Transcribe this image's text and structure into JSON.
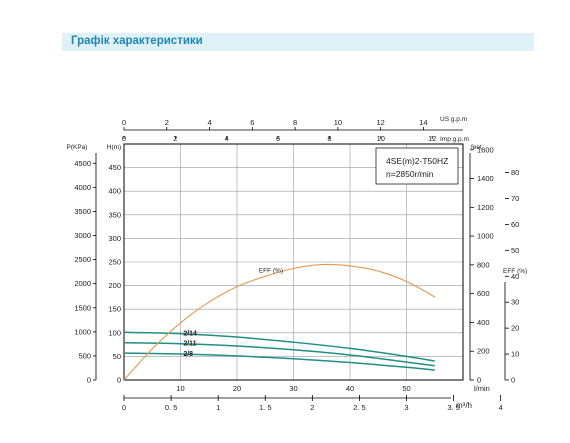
{
  "header": {
    "title": "Графік характеристики"
  },
  "chart_data": {
    "type": "line",
    "model_box": {
      "line1": "4SE(m)2-T50HZ",
      "line2": "n=2850r/min"
    },
    "axes": {
      "x_lpm": {
        "label": "l/min",
        "range": [
          0,
          60
        ],
        "ticks": [
          10,
          20,
          30,
          40,
          50
        ],
        "tick_labels": [
          "10",
          "20",
          "30",
          "40",
          "50"
        ]
      },
      "x_m3h": {
        "label": "m³/h",
        "range": [
          0,
          3.6
        ],
        "ticks": [
          0,
          0.5,
          1,
          1.5,
          2,
          2.5,
          3,
          3.5,
          4
        ],
        "tick_labels": [
          "0",
          "0. 5",
          "1",
          "1. 5",
          "2",
          "2. 5",
          "3",
          "3. 5",
          "4"
        ]
      },
      "x_usgpm": {
        "label": "US g.p.m",
        "range": [
          0,
          15.85
        ],
        "ticks": [
          0,
          2,
          4,
          6,
          8,
          10,
          12,
          14
        ],
        "tick_labels": [
          "0",
          "2",
          "4",
          "6",
          "8",
          "10",
          "12",
          "14"
        ]
      },
      "x_impgpm": {
        "label": "Imp g.p.m",
        "range": [
          0,
          13.2
        ],
        "ticks": [
          0,
          2,
          4,
          6,
          8,
          10,
          12,
          14
        ],
        "tick_labels": [
          "0",
          "2",
          "4",
          "6",
          "8",
          "10",
          "12",
          "14"
        ]
      },
      "y_head_m": {
        "label": "H(m)",
        "range": [
          0,
          500
        ],
        "ticks": [
          0,
          50,
          100,
          150,
          200,
          250,
          300,
          350,
          400,
          450
        ],
        "tick_labels": [
          "0",
          "50",
          "100",
          "150",
          "200",
          "250",
          "300",
          "350",
          "400",
          "450"
        ]
      },
      "y_pressure_kpa": {
        "label": "P(KPa)",
        "range": [
          0,
          4900
        ],
        "ticks": [
          0,
          500,
          1000,
          1500,
          2000,
          2500,
          3000,
          3500,
          4000,
          4500
        ],
        "tick_labels": [
          "0",
          "500",
          "1000",
          "1500",
          "2000",
          "2500",
          "3000",
          "3500",
          "4000",
          "4500"
        ]
      },
      "y_feet": {
        "label": "feet",
        "range": [
          0,
          1640
        ],
        "ticks": [
          0,
          200,
          400,
          600,
          800,
          1000,
          1200,
          1400,
          1600
        ],
        "tick_labels": [
          "0",
          "200",
          "400",
          "600",
          "800",
          "1000",
          "1200",
          "1400",
          "1600"
        ]
      },
      "y_eff": {
        "label": "EFF (%)",
        "range": [
          0,
          91
        ],
        "ticks": [
          0,
          10,
          20,
          30,
          40,
          50,
          60,
          70,
          80
        ],
        "tick_labels": [
          "0",
          "10",
          "20",
          "30",
          "40",
          "50",
          "60",
          "70",
          "80"
        ]
      }
    },
    "x_unit": "l/min",
    "series": [
      {
        "name": "2/14",
        "axis": "y_head_m",
        "color": "#1f8f87",
        "x": [
          0,
          10,
          20,
          30,
          40,
          50,
          55
        ],
        "y": [
          101,
          98,
          91,
          80,
          67,
          50,
          40
        ]
      },
      {
        "name": "2/11",
        "axis": "y_head_m",
        "color": "#1f8f87",
        "x": [
          0,
          10,
          20,
          30,
          40,
          50,
          55
        ],
        "y": [
          79,
          77,
          72,
          64,
          53,
          38,
          30
        ]
      },
      {
        "name": "2/8",
        "axis": "y_head_m",
        "color": "#1f8f87",
        "x": [
          0,
          10,
          20,
          30,
          40,
          50,
          55
        ],
        "y": [
          57,
          55,
          51,
          45,
          37,
          27,
          21
        ]
      },
      {
        "name": "EFF (%)",
        "axis": "y_eff",
        "color": "#e09a52",
        "x": [
          0,
          5,
          10,
          15,
          20,
          25,
          30,
          35,
          40,
          45,
          50,
          55
        ],
        "y": [
          0,
          12,
          22,
          30,
          36,
          40,
          43,
          44.5,
          44,
          42,
          38,
          32
        ]
      }
    ],
    "grid": true
  }
}
